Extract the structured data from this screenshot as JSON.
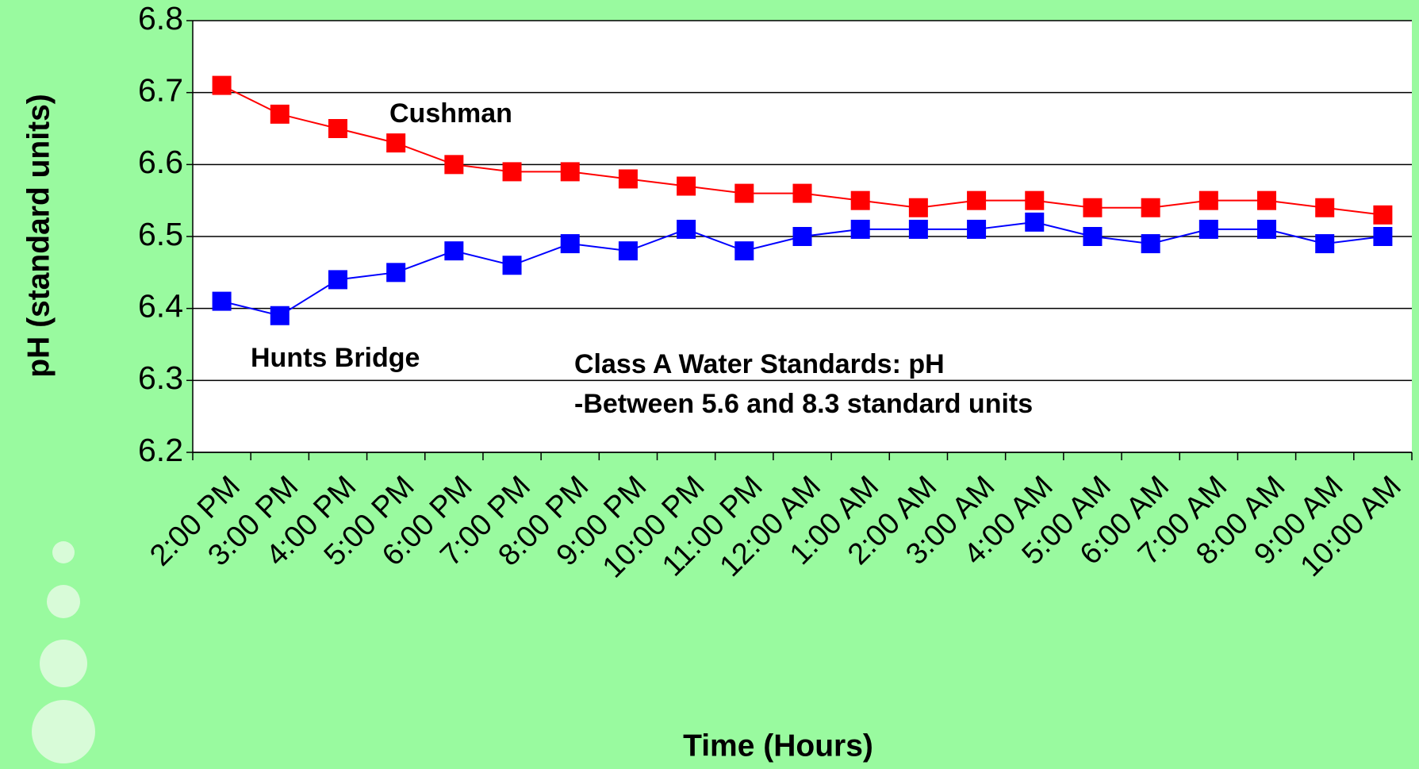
{
  "chart_data": {
    "type": "line",
    "xlabel": "Time (Hours)",
    "ylabel": "pH (standard units)",
    "categories": [
      "2:00 PM",
      "3:00 PM",
      "4:00 PM",
      "5:00 PM",
      "6:00 PM",
      "7:00 PM",
      "8:00 PM",
      "9:00 PM",
      "10:00 PM",
      "11:00 PM",
      "12:00 AM",
      "1:00 AM",
      "2:00 AM",
      "3:00 AM",
      "4:00 AM",
      "5:00 AM",
      "6:00 AM",
      "7:00 AM",
      "8:00 AM",
      "9:00 AM",
      "10:00 AM"
    ],
    "series": [
      {
        "name": "Cushman",
        "color": "#ff0000",
        "values": [
          6.71,
          6.67,
          6.65,
          6.63,
          6.6,
          6.59,
          6.59,
          6.58,
          6.57,
          6.56,
          6.56,
          6.55,
          6.54,
          6.55,
          6.55,
          6.54,
          6.54,
          6.55,
          6.55,
          6.54,
          6.53
        ]
      },
      {
        "name": "Hunts Bridge",
        "color": "#0000ff",
        "values": [
          6.41,
          6.39,
          6.44,
          6.45,
          6.48,
          6.46,
          6.49,
          6.48,
          6.51,
          6.48,
          6.5,
          6.51,
          6.51,
          6.51,
          6.52,
          6.5,
          6.49,
          6.51,
          6.51,
          6.49,
          6.5
        ]
      }
    ],
    "annotations": [
      "Class A Water Standards: pH",
      "-Between 5.6 and 8.3 standard units"
    ],
    "ylim": [
      6.2,
      6.8
    ],
    "yticks": [
      6.2,
      6.3,
      6.4,
      6.5,
      6.6,
      6.7,
      6.8
    ],
    "grid": true
  }
}
